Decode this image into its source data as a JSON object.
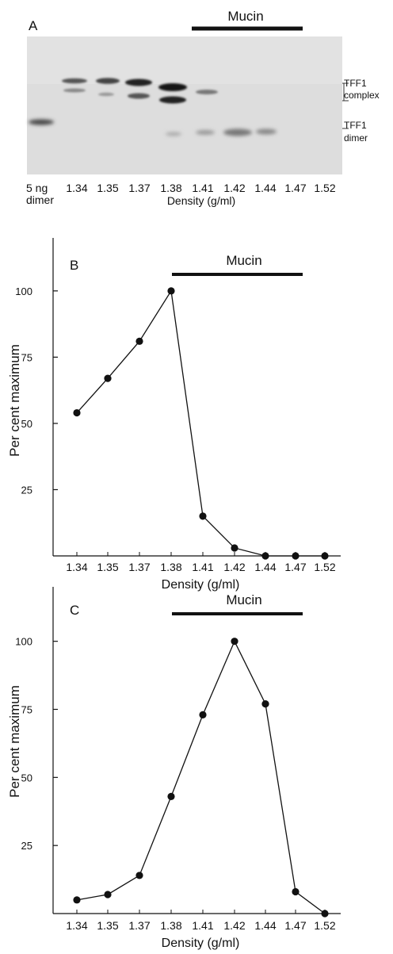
{
  "panel_a": {
    "letter": "A",
    "bar_label": "Mucin",
    "lane_labels": [
      "1.34",
      "1.35",
      "1.37",
      "1.38",
      "1.41",
      "1.42",
      "1.44",
      "1.47",
      "1.52"
    ],
    "marker_label_line1": "5 ng",
    "marker_label_line2": "dimer",
    "xlabel": "Density (g/ml)",
    "band_labels": {
      "complex_line1": "TFF1",
      "complex_line2": "complex",
      "dimer_line1": "TFF1",
      "dimer_line2": "dimer"
    }
  },
  "chart_data": [
    {
      "type": "line",
      "panel": "B",
      "annotation": "Mucin",
      "categories": [
        "1.34",
        "1.35",
        "1.37",
        "1.38",
        "1.41",
        "1.42",
        "1.44",
        "1.47",
        "1.52"
      ],
      "values": [
        54,
        67,
        81,
        100,
        15,
        3,
        0,
        0,
        0
      ],
      "xlabel": "Density (g/ml)",
      "ylabel": "Per cent maximum",
      "yticks": [
        "25",
        "50",
        "75",
        "100"
      ],
      "ylim": [
        0,
        120
      ]
    },
    {
      "type": "line",
      "panel": "C",
      "annotation": "Mucin",
      "categories": [
        "1.34",
        "1.35",
        "1.37",
        "1.38",
        "1.41",
        "1.42",
        "1.44",
        "1.47",
        "1.52"
      ],
      "values": [
        5,
        7,
        14,
        43,
        73,
        100,
        77,
        8,
        0
      ],
      "xlabel": "Density (g/ml)",
      "ylabel": "Per cent maximum",
      "yticks": [
        "25",
        "50",
        "75",
        "100"
      ],
      "ylim": [
        0,
        120
      ]
    }
  ]
}
